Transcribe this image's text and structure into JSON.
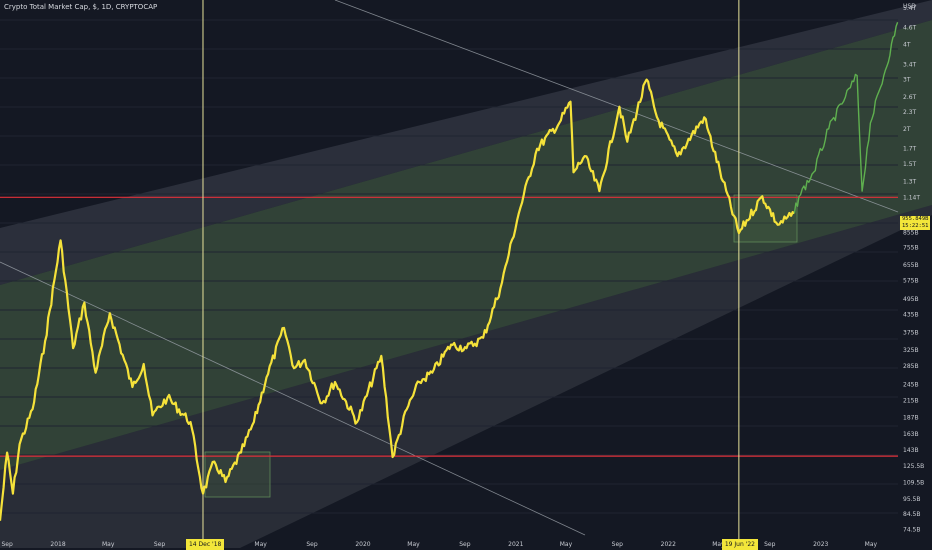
{
  "header": {
    "title": "Crypto Total Market Cap, $, 1D, CRYPTOCAP"
  },
  "price_tag": {
    "value": "955.849B",
    "countdown": "15:22:51"
  },
  "date_markers": [
    {
      "label": "14 Dec '18"
    },
    {
      "label": "19 Jun '22"
    }
  ],
  "colors": {
    "background": "#141823",
    "price_line": "#f5e23a",
    "recent_line": "#5fb04f",
    "horizontal_level": "#e0303a",
    "vertical_marker": "#e7e29a",
    "channel_band": "#6f9b63"
  },
  "chart_data": {
    "type": "line",
    "title": "Crypto Total Market Cap, $, 1D, CRYPTOCAP",
    "xlabel": "",
    "ylabel": "",
    "y_scale": "log",
    "y_unit_label": "USD",
    "x_range": [
      "2017-08-15",
      "2023-07-05"
    ],
    "y_range": [
      70000000000,
      5400000000000
    ],
    "x_tick_labels": [
      "Sep",
      "2018",
      "May",
      "Sep",
      "14 Dec '18",
      "May",
      "Sep",
      "2020",
      "May",
      "Sep",
      "2021",
      "May",
      "Sep",
      "2022",
      "May",
      "19 Jun '22",
      "Sep",
      "2023",
      "May"
    ],
    "y_tick_labels": [
      "USD",
      "5.4T",
      "4.6T",
      "4T",
      "3.4T",
      "3T",
      "2.6T",
      "2.3T",
      "2T",
      "1.7T",
      "1.5T",
      "1.3T",
      "1.14T",
      "855B",
      "755B",
      "655B",
      "575B",
      "495B",
      "435B",
      "375B",
      "325B",
      "285B",
      "245B",
      "215B",
      "187B",
      "163B",
      "143B",
      "125.5B",
      "109.5B",
      "95.5B",
      "84.5B",
      "74.5B"
    ],
    "last_value": "955.849B",
    "horizontal_levels": [
      {
        "value": 1140000000000
      },
      {
        "value": 136000000000
      }
    ],
    "vertical_markers": [
      "2018-12-14",
      "2022-06-19"
    ],
    "series": [
      {
        "color": "#f5e23a",
        "points": [
          [
            "2017-08-15",
            80000000000
          ],
          [
            "2017-09-01",
            140000000000
          ],
          [
            "2017-09-15",
            100000000000
          ],
          [
            "2017-10-01",
            150000000000
          ],
          [
            "2017-11-01",
            200000000000
          ],
          [
            "2017-12-01",
            350000000000
          ],
          [
            "2018-01-07",
            800000000000
          ],
          [
            "2018-02-06",
            330000000000
          ],
          [
            "2018-03-05",
            480000000000
          ],
          [
            "2018-04-01",
            270000000000
          ],
          [
            "2018-05-05",
            440000000000
          ],
          [
            "2018-06-28",
            240000000000
          ],
          [
            "2018-07-25",
            290000000000
          ],
          [
            "2018-08-15",
            190000000000
          ],
          [
            "2018-09-20",
            220000000000
          ],
          [
            "2018-11-14",
            180000000000
          ],
          [
            "2018-12-14",
            100000000000
          ],
          [
            "2019-01-10",
            130000000000
          ],
          [
            "2019-02-06",
            110000000000
          ],
          [
            "2019-03-15",
            140000000000
          ],
          [
            "2019-04-15",
            180000000000
          ],
          [
            "2019-05-15",
            260000000000
          ],
          [
            "2019-06-26",
            390000000000
          ],
          [
            "2019-07-20",
            280000000000
          ],
          [
            "2019-08-15",
            300000000000
          ],
          [
            "2019-09-25",
            210000000000
          ],
          [
            "2019-10-26",
            250000000000
          ],
          [
            "2019-12-18",
            180000000000
          ],
          [
            "2020-02-14",
            310000000000
          ],
          [
            "2020-03-12",
            135000000000
          ],
          [
            "2020-04-15",
            200000000000
          ],
          [
            "2020-05-15",
            250000000000
          ],
          [
            "2020-06-15",
            270000000000
          ],
          [
            "2020-07-30",
            340000000000
          ],
          [
            "2020-09-05",
            330000000000
          ],
          [
            "2020-10-15",
            360000000000
          ],
          [
            "2020-11-25",
            540000000000
          ],
          [
            "2021-01-08",
            1000000000000
          ],
          [
            "2021-02-21",
            1700000000000
          ],
          [
            "2021-04-15",
            2100000000000
          ],
          [
            "2021-05-12",
            2500000000000
          ],
          [
            "2021-05-19",
            1400000000000
          ],
          [
            "2021-06-15",
            1600000000000
          ],
          [
            "2021-07-20",
            1200000000000
          ],
          [
            "2021-09-06",
            2400000000000
          ],
          [
            "2021-09-25",
            1800000000000
          ],
          [
            "2021-11-10",
            3000000000000
          ],
          [
            "2021-12-05",
            2200000000000
          ],
          [
            "2022-01-23",
            1600000000000
          ],
          [
            "2022-03-28",
            2200000000000
          ],
          [
            "2022-05-12",
            1300000000000
          ],
          [
            "2022-06-19",
            850000000000
          ],
          [
            "2022-08-14",
            1150000000000
          ],
          [
            "2022-09-20",
            910000000000
          ],
          [
            "2022-10-30",
            1000000000000
          ]
        ]
      },
      {
        "color": "#5fb04f",
        "points": [
          [
            "2022-10-30",
            1000000000000
          ],
          [
            "2022-11-10",
            1150000000000
          ],
          [
            "2022-12-15",
            1400000000000
          ],
          [
            "2023-01-20",
            2000000000000
          ],
          [
            "2023-03-01",
            2600000000000
          ],
          [
            "2023-03-29",
            3100000000000
          ],
          [
            "2023-04-10",
            1200000000000
          ],
          [
            "2023-04-30",
            2100000000000
          ],
          [
            "2023-06-01",
            3100000000000
          ],
          [
            "2023-07-04",
            4800000000000
          ]
        ]
      }
    ]
  }
}
